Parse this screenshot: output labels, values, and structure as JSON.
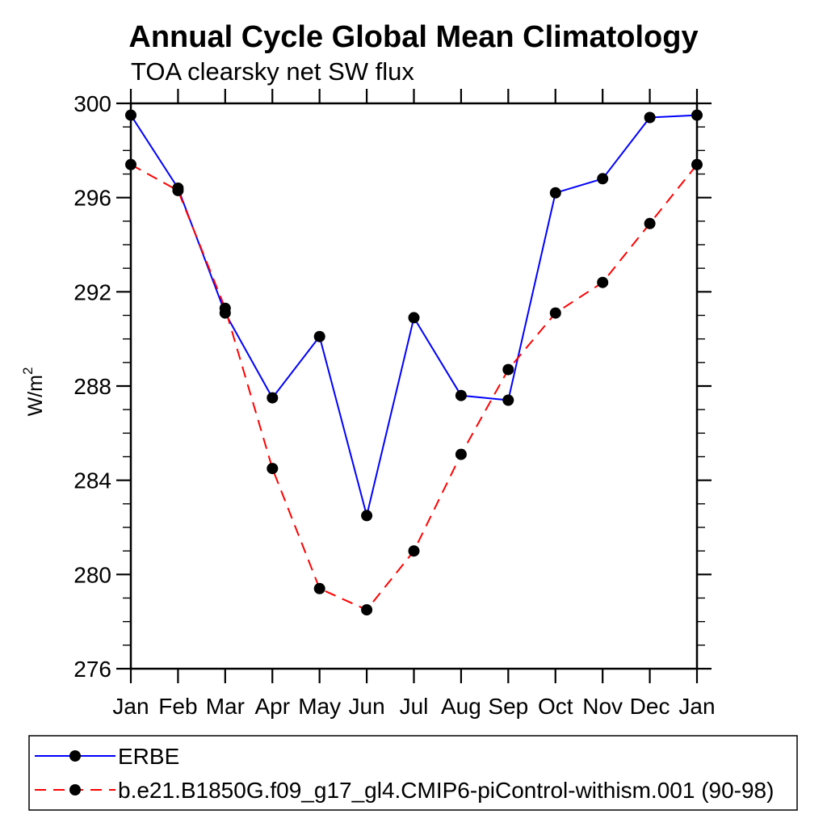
{
  "chart_data": {
    "type": "line",
    "title": "Annual Cycle Global Mean Climatology",
    "subtitle": "TOA clearsky net SW flux",
    "ylabel": "W/m²",
    "ylabel_base": "W/m",
    "ylabel_sup": "2",
    "xlabel": "",
    "categories": [
      "Jan",
      "Feb",
      "Mar",
      "Apr",
      "May",
      "Jun",
      "Jul",
      "Aug",
      "Sep",
      "Oct",
      "Nov",
      "Dec",
      "Jan"
    ],
    "ylim": [
      276,
      300
    ],
    "yticks_major": [
      276,
      280,
      284,
      288,
      292,
      296,
      300
    ],
    "ytick_minor_step": 1,
    "grid": false,
    "legend_position": "bottom-left",
    "series": [
      {
        "id": "erbe",
        "name": "ERBE",
        "color": "#0000ff",
        "line_style": "solid",
        "marker": "circle",
        "marker_color": "#000000",
        "values": [
          299.5,
          296.4,
          291.1,
          287.5,
          290.1,
          282.5,
          290.9,
          287.6,
          287.4,
          296.2,
          296.8,
          299.4,
          299.5
        ]
      },
      {
        "id": "model",
        "name": "b.e21.B1850G.f09_g17_gl4.CMIP6-piControl-withism.001 (90-98)",
        "color": "#ff0000",
        "line_style": "dashed",
        "marker": "circle",
        "marker_color": "#000000",
        "values": [
          297.4,
          296.3,
          291.3,
          284.5,
          279.4,
          278.5,
          281.0,
          285.1,
          288.7,
          291.1,
          292.4,
          294.9,
          297.4
        ]
      }
    ],
    "axis_color": "#000000",
    "background_color": "#ffffff"
  }
}
